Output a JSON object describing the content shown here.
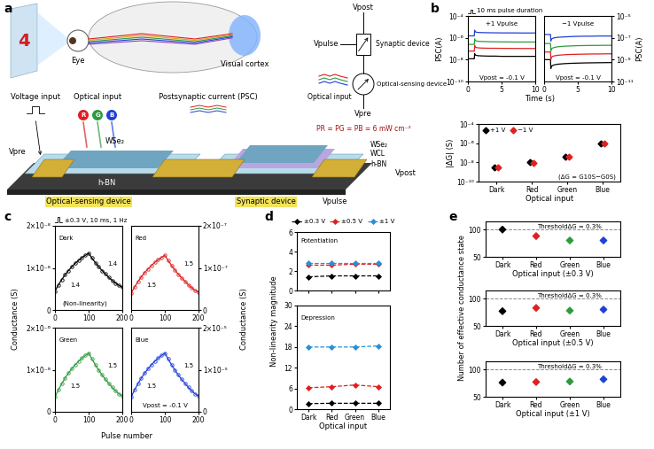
{
  "panel_labels": [
    "a",
    "b",
    "c",
    "d",
    "e"
  ],
  "diagram": {
    "display_digit": "4",
    "eye": "Eye",
    "visual_cortex": "Visual cortex",
    "voltage_input": "Voltage input",
    "optical_input": "Optical input",
    "rgb": [
      "R",
      "G",
      "B"
    ],
    "psc": "Postsynaptic current (PSC)",
    "vpre": "Vpre",
    "vpost": "Vpost",
    "vpulse": "Vpulse",
    "layers_left": [
      "WSe₂",
      "h-BN"
    ],
    "layers_right": [
      "WSe₂",
      "WCL",
      "h-BN"
    ],
    "device_left": "Optical-sensing device",
    "device_right": "Synaptic device",
    "circuit": {
      "vpost": "Vpost",
      "vpulse": "Vpulse",
      "synaptic": "Synaptic device",
      "sensing": "Optical-sensing device",
      "optical_input": "Optical input",
      "vpre": "Vpre",
      "power": "PR = PG = PB = 6 mW cm⁻²"
    }
  },
  "chart_data": [
    {
      "type": "line",
      "xlabel": "Time (s)",
      "ylabel": "PSC(A)",
      "log": "y",
      "xlim": [
        0,
        10
      ],
      "xticks": [
        0,
        5,
        10
      ],
      "ylim": [
        1e-10,
        0.0001
      ],
      "yticks": [
        {
          "value": 1e-10,
          "label": "10⁻¹⁰"
        },
        {
          "value": 1e-08,
          "label": "10⁻⁸"
        },
        {
          "value": 1e-06,
          "label": "10⁻⁶"
        },
        {
          "value": 0.0001,
          "label": "10⁻⁴"
        }
      ],
      "x": [
        0,
        0.5,
        0.95,
        1.0,
        1.05,
        1.2,
        1.5,
        2,
        3,
        4,
        5,
        6,
        7,
        8,
        9,
        10
      ],
      "series": [
        {
          "color": "#000000",
          "values": [
            1.2e-08,
            1.2e-08,
            1.2e-08,
            3.5e-08,
            2.8e-08,
            2.5e-08,
            2.3e-08,
            2.2e-08,
            2.1e-08,
            2.1e-08,
            2e-08,
            2e-08,
            2e-08,
            2e-08,
            2e-08,
            2e-08
          ]
        },
        {
          "color": "#e02020",
          "values": [
            6e-08,
            6e-08,
            6e-08,
            2e-07,
            1.5e-07,
            1.3e-07,
            1.2e-07,
            1.15e-07,
            1.1e-07,
            1.1e-07,
            1.08e-07,
            1.07e-07,
            1.06e-07,
            1.05e-07,
            1.05e-07,
            1.05e-07
          ]
        },
        {
          "color": "#2e9b3e",
          "values": [
            2.5e-07,
            2.5e-07,
            2.5e-07,
            8e-07,
            6e-07,
            5.2e-07,
            4.8e-07,
            4.6e-07,
            4.4e-07,
            4.3e-07,
            4.2e-07,
            4.2e-07,
            4.1e-07,
            4.1e-07,
            4.1e-07,
            4.1e-07
          ]
        },
        {
          "color": "#2040d8",
          "values": [
            1.5e-06,
            1.5e-06,
            1.5e-06,
            5e-06,
            3.8e-06,
            3.3e-06,
            3.1e-06,
            3e-06,
            2.9e-06,
            2.85e-06,
            2.8e-06,
            2.8e-06,
            2.8e-06,
            2.75e-06,
            2.75e-06,
            2.75e-06
          ]
        }
      ],
      "annotations": [
        "10 ms pulse duration",
        "+1 Vpulse",
        "Vpost = -0.1 V"
      ]
    },
    {
      "type": "line",
      "ylabel": "PSC(A)",
      "log": "y",
      "xlim": [
        0,
        10
      ],
      "xticks": [
        0,
        5,
        10
      ],
      "ylim": [
        1e-11,
        1e-05
      ],
      "yticks": [
        {
          "value": 1e-11,
          "label": "10⁻¹¹"
        },
        {
          "value": 1e-09,
          "label": "10⁻⁹"
        },
        {
          "value": 1e-07,
          "label": "10⁻⁷"
        },
        {
          "value": 1e-05,
          "label": "10⁻⁵"
        }
      ],
      "x": [
        0,
        0.5,
        0.95,
        1.0,
        1.05,
        1.2,
        1.5,
        2,
        3,
        4,
        5,
        6,
        7,
        8,
        9,
        10
      ],
      "series": [
        {
          "color": "#000000",
          "values": [
            1e-09,
            1e-09,
            1e-09,
            1.5e-10,
            2.2e-10,
            2.8e-10,
            3.3e-10,
            3.8e-10,
            4.3e-10,
            4.6e-10,
            4.8e-10,
            5e-10,
            5.1e-10,
            5.2e-10,
            5.3e-10,
            5.4e-10
          ]
        },
        {
          "color": "#e02020",
          "values": [
            5e-09,
            5e-09,
            5e-09,
            1e-09,
            1.5e-09,
            1.9e-09,
            2.2e-09,
            2.5e-09,
            2.8e-09,
            3e-09,
            3.1e-09,
            3.2e-09,
            3.3e-09,
            3.3e-09,
            3.4e-09,
            3.4e-09
          ]
        },
        {
          "color": "#2e9b3e",
          "values": [
            3e-08,
            3e-08,
            3e-08,
            6e-09,
            9e-09,
            1.1e-08,
            1.3e-08,
            1.5e-08,
            1.7e-08,
            1.8e-08,
            1.9e-08,
            1.95e-08,
            2e-08,
            2e-08,
            2.05e-08,
            2.05e-08
          ]
        },
        {
          "color": "#2040d8",
          "values": [
            2e-07,
            2e-07,
            2e-07,
            5e-08,
            7e-08,
            8.5e-08,
            1e-07,
            1.1e-07,
            1.2e-07,
            1.3e-07,
            1.35e-07,
            1.4e-07,
            1.4e-07,
            1.45e-07,
            1.45e-07,
            1.45e-07
          ]
        }
      ],
      "annotations": [
        "−1 Vpulse",
        "Vpost = -0.1 V"
      ]
    },
    {
      "type": "scatter",
      "xlabel": "Optical input",
      "ylabel": "|ΔG| (S)",
      "log": "y",
      "categories": [
        "Dark",
        "Red",
        "Green",
        "Blue"
      ],
      "ylim": [
        1e-10,
        0.0001
      ],
      "yticks": [
        {
          "value": 1e-10,
          "label": "10⁻¹⁰"
        },
        {
          "value": 1e-08,
          "label": "10⁻⁸"
        },
        {
          "value": 1e-06,
          "label": "10⁻⁶"
        },
        {
          "value": 0.0001,
          "label": "10⁻⁴"
        }
      ],
      "marker": "diamond",
      "legend": "upper left",
      "series": [
        {
          "name": "+1 V",
          "color": "#000000",
          "values": [
            3e-09,
            1e-08,
            4e-08,
            1e-06
          ]
        },
        {
          "name": "−1 V",
          "color": "#e02020",
          "values": [
            3e-09,
            9e-09,
            4e-08,
            9e-07
          ]
        }
      ],
      "annotations": [
        "(ΔG = G10S−G0S)"
      ]
    },
    {
      "type": "line",
      "ylabel": "Conductance (S)",
      "marker": "circle",
      "xlim": [
        0,
        200
      ],
      "xticks": [
        0,
        100,
        200
      ],
      "ylim": [
        0,
        2e-08
      ],
      "yticks": [
        0,
        {
          "value": 1e-08,
          "label": "1×10⁻⁸"
        },
        {
          "value": 2e-08,
          "label": "2×10⁻⁸"
        }
      ],
      "x": [
        0,
        10,
        20,
        30,
        40,
        50,
        60,
        70,
        80,
        90,
        100,
        110,
        120,
        130,
        140,
        150,
        160,
        170,
        180,
        190,
        200
      ],
      "series": [
        {
          "color": "#000000",
          "values": [
            4.5e-09,
            5.94e-09,
            7.2e-09,
            8.37e-09,
            9.36e-09,
            1.026e-08,
            1.107e-08,
            1.179e-08,
            1.242e-08,
            1.296e-08,
            1.35e-08,
            1.233e-08,
            1.125e-08,
            1.026e-08,
            9.36e-09,
            8.55e-09,
            7.74e-09,
            7.02e-09,
            6.39e-09,
            5.85e-09,
            5.4e-09
          ]
        }
      ],
      "annotations": [
        "±0.3 V, 10 ms, 1 Hz",
        "Dark",
        "1.4",
        "1.4",
        "(Non-linearity)"
      ]
    },
    {
      "type": "line",
      "ylabel": "Conductance (S)",
      "marker": "circle",
      "xlim": [
        0,
        200
      ],
      "xticks": [
        0,
        100,
        200
      ],
      "ylim": [
        0,
        2e-07
      ],
      "yticks": [
        0,
        {
          "value": 1e-07,
          "label": "1×10⁻⁷"
        },
        {
          "value": 2e-07,
          "label": "2×10⁻⁷"
        }
      ],
      "x": [
        0,
        10,
        20,
        30,
        40,
        50,
        60,
        70,
        80,
        90,
        100,
        110,
        120,
        130,
        140,
        150,
        160,
        170,
        180,
        190,
        200
      ],
      "series": [
        {
          "color": "#e02020",
          "values": [
            4e-08,
            5.44e-08,
            6.7e-08,
            7.87e-08,
            8.86e-08,
            9.76e-08,
            1.057e-07,
            1.129e-07,
            1.192e-07,
            1.246e-07,
            1.3e-07,
            1.174e-07,
            1.057e-07,
            9.49e-08,
            8.5e-08,
            7.6e-08,
            6.79e-08,
            5.98e-08,
            5.26e-08,
            4.63e-08,
            4.27e-08
          ]
        }
      ],
      "annotations": [
        "Red",
        "1.5",
        "1.5"
      ]
    },
    {
      "type": "line",
      "xlabel": "Pulse number",
      "marker": "circle",
      "xlim": [
        0,
        200
      ],
      "xticks": [
        0,
        100,
        200
      ],
      "ylim": [
        0,
        2e-06
      ],
      "yticks": [
        0,
        {
          "value": 1e-06,
          "label": "1×10⁻⁶"
        },
        {
          "value": 2e-06,
          "label": "2×10⁻⁶"
        }
      ],
      "x": [
        0,
        10,
        20,
        30,
        40,
        50,
        60,
        70,
        80,
        90,
        100,
        110,
        120,
        130,
        140,
        150,
        160,
        170,
        180,
        190,
        200
      ],
      "series": [
        {
          "color": "#2e9b3e",
          "values": [
            3.5e-07,
            5.18e-07,
            6.65e-07,
            8.02e-07,
            9.17e-07,
            1.022e-06,
            1.117e-06,
            1.201e-06,
            1.274e-06,
            1.337e-06,
            1.4e-06,
            1.253e-06,
            1.117e-06,
            9.91e-07,
            8.75e-07,
            7.7e-07,
            6.76e-07,
            5.81e-07,
            4.97e-07,
            4.24e-07,
            3.82e-07
          ]
        }
      ],
      "annotations": [
        "Green",
        "1.5",
        "1.5"
      ]
    },
    {
      "type": "line",
      "marker": "circle",
      "xlim": [
        0,
        200
      ],
      "xticks": [
        0,
        100,
        200
      ],
      "ylim": [
        0,
        2e-05
      ],
      "yticks": [
        0,
        {
          "value": 1e-05,
          "label": "1×10⁻⁵"
        },
        {
          "value": 2e-05,
          "label": "2×10⁻⁵"
        }
      ],
      "x": [
        0,
        10,
        20,
        30,
        40,
        50,
        60,
        70,
        80,
        90,
        100,
        110,
        120,
        130,
        140,
        150,
        160,
        170,
        180,
        190,
        200
      ],
      "series": [
        {
          "color": "#2040d8",
          "values": [
            3.5e-06,
            5.18e-06,
            6.65e-06,
            8.02e-06,
            9.17e-06,
            1.022e-05,
            1.117e-05,
            1.201e-05,
            1.274e-05,
            1.337e-05,
            1.4e-05,
            1.253e-05,
            1.117e-05,
            9.91e-06,
            8.75e-06,
            7.7e-06,
            6.76e-06,
            5.81e-06,
            4.97e-06,
            4.24e-06,
            3.82e-06
          ]
        }
      ],
      "annotations": [
        "Blue",
        "1.5",
        "1.5",
        "Vpost = -0.1 V"
      ]
    },
    {
      "type": "line",
      "ylabel": "Non-linearity magnitude",
      "tick_labels": "y",
      "categories": [
        "Dark",
        "Red",
        "Green",
        "Blue"
      ],
      "ylim": [
        0,
        6
      ],
      "yticks": [
        0,
        2,
        4,
        6
      ],
      "marker": "diamond",
      "line_style": "dashed",
      "legend": "upper center",
      "series": [
        {
          "name": "±0.3 V",
          "color": "#000000",
          "values": [
            1.4,
            1.5,
            1.5,
            1.5
          ]
        },
        {
          "name": "±0.5 V",
          "color": "#e02020",
          "values": [
            2.6,
            2.6,
            2.7,
            2.7
          ]
        },
        {
          "name": "±1 V",
          "color": "#2a8fd8",
          "values": [
            2.8,
            2.8,
            2.8,
            2.8
          ]
        }
      ],
      "annotations": [
        "Potentiation"
      ]
    },
    {
      "type": "line",
      "xlabel": "Optical input",
      "categories": [
        "Dark",
        "Red",
        "Green",
        "Blue"
      ],
      "ylim": [
        0,
        30
      ],
      "yticks": [
        0,
        6,
        12,
        18,
        24,
        30
      ],
      "marker": "diamond",
      "line_style": "dashed",
      "series": [
        {
          "name": "±0.3 V",
          "color": "#000000",
          "values": [
            1.6,
            1.7,
            1.7,
            1.7
          ]
        },
        {
          "name": "±0.5 V",
          "color": "#e02020",
          "values": [
            6.2,
            6.5,
            7.0,
            6.5
          ]
        },
        {
          "name": "±1 V",
          "color": "#2a8fd8",
          "values": [
            18.0,
            18.0,
            18.0,
            18.3
          ]
        }
      ],
      "annotations": [
        "Depression"
      ]
    },
    {
      "type": "scatter",
      "xlabel": "Optical input (±0.3 V)",
      "categories": [
        "Dark",
        "Red",
        "Green",
        "Blue"
      ],
      "ylim": [
        50,
        115
      ],
      "yticks": [
        50,
        100
      ],
      "marker": "diamond",
      "values": [
        100,
        88,
        80,
        80
      ],
      "colors": [
        "#000000",
        "#e02020",
        "#2e9b3e",
        "#2040d8"
      ],
      "threshold": 100,
      "annotations": [
        "ThresholdΔG = 0.3%"
      ]
    },
    {
      "type": "scatter",
      "xlabel": "Optical input (±0.5 V)",
      "ylabel": "Number of effective conductance state",
      "categories": [
        "Dark",
        "Red",
        "Green",
        "Blue"
      ],
      "ylim": [
        50,
        115
      ],
      "yticks": [
        50,
        100
      ],
      "marker": "diamond",
      "values": [
        77,
        83,
        78,
        80
      ],
      "colors": [
        "#000000",
        "#e02020",
        "#2e9b3e",
        "#2040d8"
      ],
      "threshold": 100,
      "annotations": [
        "ThresholdΔG = 0.3%"
      ]
    },
    {
      "type": "scatter",
      "xlabel": "Optical input (±1 V)",
      "categories": [
        "Dark",
        "Red",
        "Green",
        "Blue"
      ],
      "ylim": [
        50,
        115
      ],
      "yticks": [
        50,
        100
      ],
      "marker": "diamond",
      "values": [
        76,
        77,
        78,
        82
      ],
      "colors": [
        "#000000",
        "#e02020",
        "#2e9b3e",
        "#2040d8"
      ],
      "threshold": 100,
      "annotations": [
        "ThresholdΔG = 0.3%"
      ]
    }
  ]
}
